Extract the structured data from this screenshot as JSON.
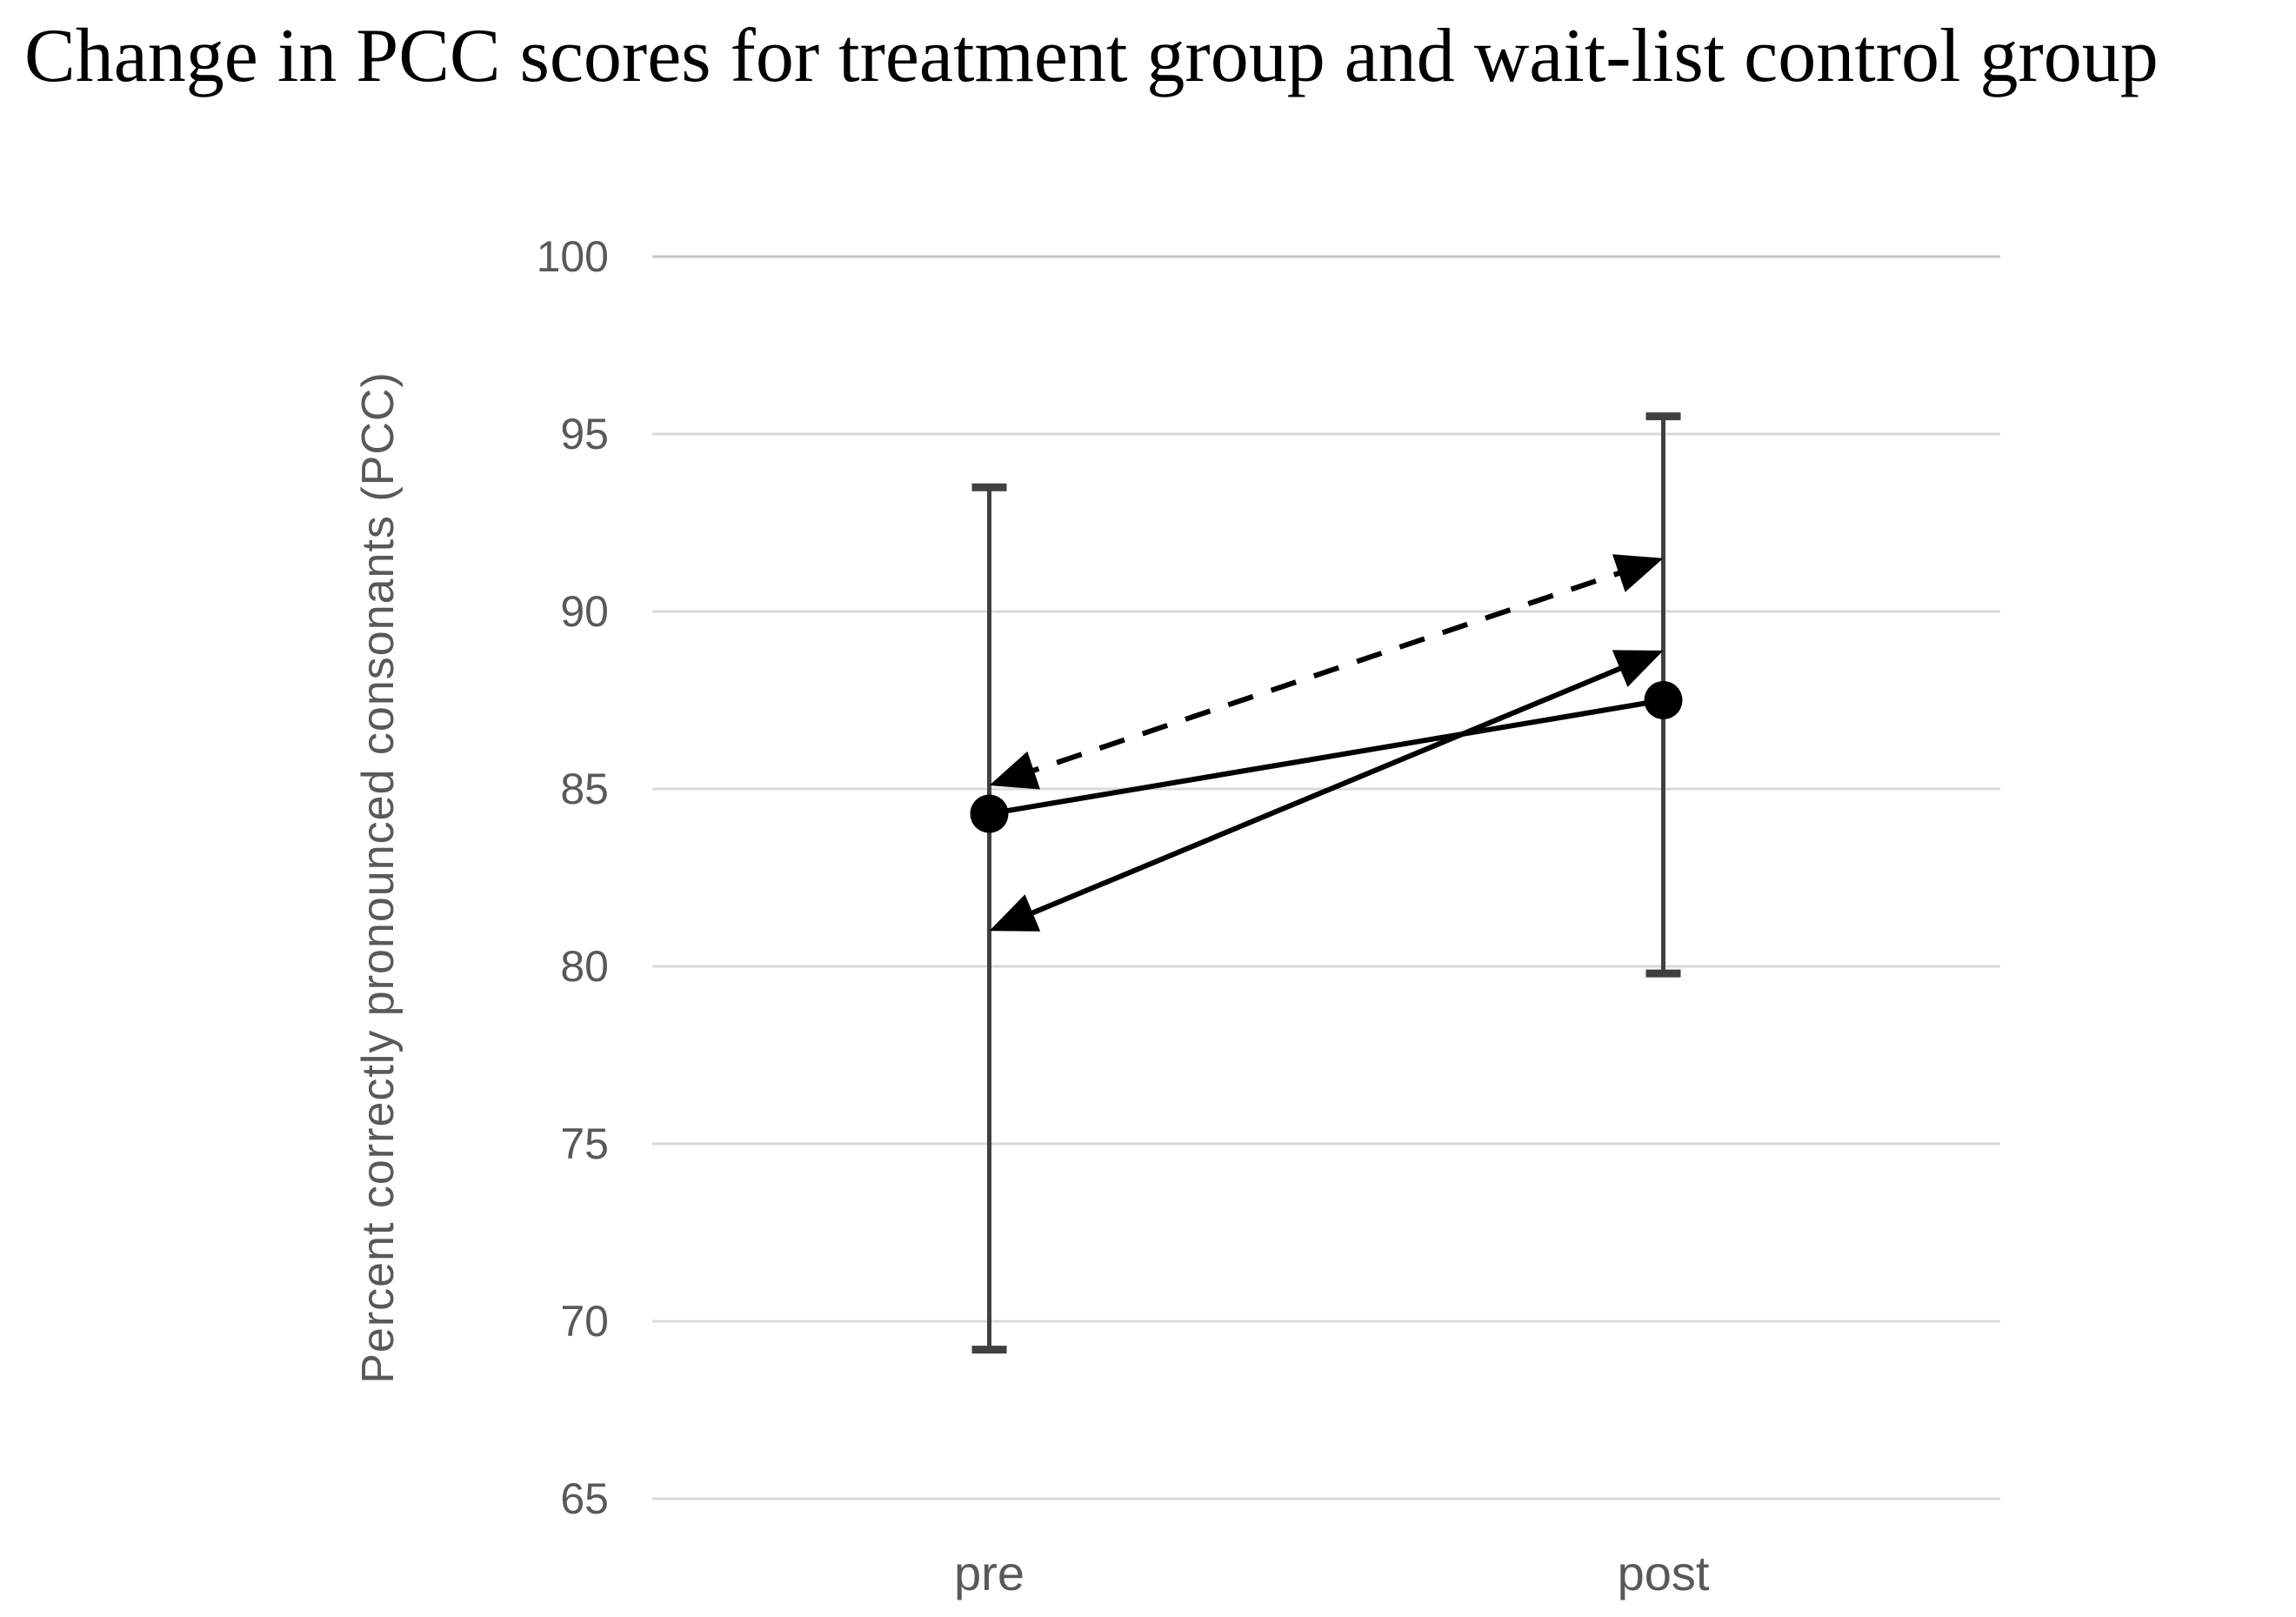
{
  "page": {
    "background": "#ffffff"
  },
  "chart_data": {
    "type": "line",
    "title": "Change in PCC scores for treatment group and wait-list control group",
    "ylabel": "Percent correctly pronounced consonants (PCC)",
    "xlabel": "",
    "categories": [
      "pre",
      "post"
    ],
    "ylim": [
      65,
      100
    ],
    "ytick_interval": 5,
    "ytick_labels": [
      "65",
      "70",
      "75",
      "80",
      "85",
      "90",
      "95",
      "100"
    ],
    "grid": true,
    "legend_position": "none",
    "series": [
      {
        "name": "solid line with circle markers",
        "marker": "circle",
        "line_style": "solid",
        "arrows": false,
        "values": [
          84.3,
          87.5
        ]
      },
      {
        "name": "solid line with arrowheads",
        "marker": "none",
        "line_style": "solid",
        "arrows": true,
        "values": [
          81.0,
          88.9
        ]
      },
      {
        "name": "dashed line with arrowheads",
        "marker": "none",
        "line_style": "dashed",
        "arrows": true,
        "values": [
          85.1,
          91.5
        ]
      }
    ],
    "error_bars": [
      {
        "category": "pre",
        "low": 69.2,
        "high": 93.5
      },
      {
        "category": "post",
        "low": 79.8,
        "high": 95.5
      }
    ],
    "colors": {
      "line": "#000000",
      "error_bar": "#404040",
      "gridline": "#d9d9d9",
      "gridline_top": "#c6c6c6",
      "axis_text": "#595959",
      "title_text": "#000000"
    }
  }
}
